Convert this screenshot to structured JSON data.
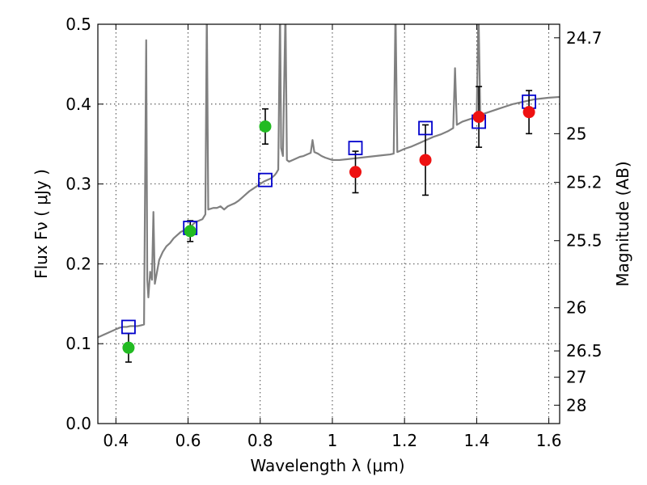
{
  "chart_data": {
    "type": "scatter",
    "title": "",
    "xlabel": "Wavelength  λ (μm)",
    "ylabel": "Flux  Fν  ( μJy )",
    "ylabel_right": "Magnitude (AB)",
    "xlim": [
      0.35,
      1.63
    ],
    "ylim": [
      0.0,
      0.5
    ],
    "x_ticks": [
      0.4,
      0.6,
      0.8,
      1.0,
      1.2,
      1.4,
      1.6
    ],
    "x_tick_labels": [
      "0.4",
      "0.6",
      "0.8",
      "1",
      "1.2",
      "1.4",
      "1.6"
    ],
    "y_ticks": [
      0.0,
      0.1,
      0.2,
      0.3,
      0.4,
      0.5
    ],
    "y_tick_labels": [
      "0.0",
      "0.1",
      "0.2",
      "0.3",
      "0.4",
      "0.5"
    ],
    "right_ticks": [
      {
        "label": "24.7",
        "flux": 0.483
      },
      {
        "label": "25",
        "flux": 0.363
      },
      {
        "label": "25.2",
        "flux": 0.302
      },
      {
        "label": "25.5",
        "flux": 0.229
      },
      {
        "label": "26",
        "flux": 0.145
      },
      {
        "label": "26.5",
        "flux": 0.091
      },
      {
        "label": "27",
        "flux": 0.058
      },
      {
        "label": "28",
        "flux": 0.023
      }
    ],
    "grid": true,
    "colors": {
      "spectrum": "#808080",
      "green_points": "#22bb22",
      "red_points": "#ee1111",
      "model_boxes": "#0000cc",
      "error_bars": "#000000"
    },
    "series": [
      {
        "style": "line",
        "points": [
          [
            0.35,
            0.108
          ],
          [
            0.36,
            0.11
          ],
          [
            0.37,
            0.112
          ],
          [
            0.38,
            0.114
          ],
          [
            0.39,
            0.116
          ],
          [
            0.4,
            0.118
          ],
          [
            0.41,
            0.12
          ],
          [
            0.42,
            0.121
          ],
          [
            0.43,
            0.121
          ],
          [
            0.44,
            0.122
          ],
          [
            0.45,
            0.122
          ],
          [
            0.46,
            0.122
          ],
          [
            0.47,
            0.123
          ],
          [
            0.478,
            0.124
          ],
          [
            0.484,
            0.48
          ],
          [
            0.487,
            0.18
          ],
          [
            0.49,
            0.158
          ],
          [
            0.495,
            0.19
          ],
          [
            0.5,
            0.18
          ],
          [
            0.504,
            0.265
          ],
          [
            0.508,
            0.175
          ],
          [
            0.52,
            0.205
          ],
          [
            0.53,
            0.215
          ],
          [
            0.54,
            0.222
          ],
          [
            0.55,
            0.226
          ],
          [
            0.56,
            0.232
          ],
          [
            0.57,
            0.236
          ],
          [
            0.58,
            0.24
          ],
          [
            0.59,
            0.242
          ],
          [
            0.6,
            0.245
          ],
          [
            0.61,
            0.248
          ],
          [
            0.62,
            0.252
          ],
          [
            0.63,
            0.254
          ],
          [
            0.64,
            0.256
          ],
          [
            0.648,
            0.262
          ],
          [
            0.652,
            0.52
          ],
          [
            0.656,
            0.268
          ],
          [
            0.67,
            0.27
          ],
          [
            0.68,
            0.27
          ],
          [
            0.69,
            0.272
          ],
          [
            0.7,
            0.268
          ],
          [
            0.71,
            0.272
          ],
          [
            0.72,
            0.274
          ],
          [
            0.73,
            0.276
          ],
          [
            0.74,
            0.279
          ],
          [
            0.75,
            0.283
          ],
          [
            0.76,
            0.287
          ],
          [
            0.77,
            0.291
          ],
          [
            0.78,
            0.294
          ],
          [
            0.79,
            0.297
          ],
          [
            0.8,
            0.3
          ],
          [
            0.81,
            0.303
          ],
          [
            0.82,
            0.305
          ],
          [
            0.83,
            0.307
          ],
          [
            0.84,
            0.311
          ],
          [
            0.845,
            0.314
          ],
          [
            0.85,
            0.318
          ],
          [
            0.855,
            0.52
          ],
          [
            0.858,
            0.345
          ],
          [
            0.863,
            0.335
          ],
          [
            0.87,
            0.52
          ],
          [
            0.874,
            0.33
          ],
          [
            0.88,
            0.328
          ],
          [
            0.89,
            0.33
          ],
          [
            0.9,
            0.332
          ],
          [
            0.91,
            0.334
          ],
          [
            0.92,
            0.335
          ],
          [
            0.93,
            0.337
          ],
          [
            0.94,
            0.339
          ],
          [
            0.945,
            0.355
          ],
          [
            0.95,
            0.34
          ],
          [
            0.96,
            0.338
          ],
          [
            0.97,
            0.335
          ],
          [
            0.98,
            0.333
          ],
          [
            1.0,
            0.33
          ],
          [
            1.02,
            0.33
          ],
          [
            1.04,
            0.331
          ],
          [
            1.06,
            0.332
          ],
          [
            1.08,
            0.333
          ],
          [
            1.1,
            0.334
          ],
          [
            1.12,
            0.335
          ],
          [
            1.14,
            0.336
          ],
          [
            1.16,
            0.337
          ],
          [
            1.17,
            0.338
          ],
          [
            1.175,
            0.52
          ],
          [
            1.18,
            0.34
          ],
          [
            1.19,
            0.342
          ],
          [
            1.2,
            0.344
          ],
          [
            1.22,
            0.347
          ],
          [
            1.24,
            0.351
          ],
          [
            1.26,
            0.355
          ],
          [
            1.28,
            0.359
          ],
          [
            1.3,
            0.362
          ],
          [
            1.32,
            0.366
          ],
          [
            1.335,
            0.37
          ],
          [
            1.34,
            0.445
          ],
          [
            1.345,
            0.374
          ],
          [
            1.36,
            0.378
          ],
          [
            1.38,
            0.381
          ],
          [
            1.4,
            0.384
          ],
          [
            1.405,
            0.52
          ],
          [
            1.41,
            0.386
          ],
          [
            1.42,
            0.388
          ],
          [
            1.44,
            0.391
          ],
          [
            1.46,
            0.394
          ],
          [
            1.48,
            0.397
          ],
          [
            1.5,
            0.4
          ],
          [
            1.52,
            0.402
          ],
          [
            1.54,
            0.404
          ],
          [
            1.56,
            0.406
          ],
          [
            1.58,
            0.407
          ],
          [
            1.6,
            0.408
          ],
          [
            1.63,
            0.409
          ]
        ]
      },
      {
        "style": "points-green",
        "points": [
          {
            "x": 0.435,
            "y": 0.095,
            "err": 0.018
          },
          {
            "x": 0.606,
            "y": 0.241,
            "err": 0.013
          },
          {
            "x": 0.814,
            "y": 0.372,
            "err": 0.022
          }
        ]
      },
      {
        "style": "points-red",
        "points": [
          {
            "x": 1.064,
            "y": 0.315,
            "err": 0.026
          },
          {
            "x": 1.258,
            "y": 0.33,
            "err": 0.044
          },
          {
            "x": 1.406,
            "y": 0.384,
            "err": 0.038
          },
          {
            "x": 1.545,
            "y": 0.39,
            "err": 0.027
          }
        ]
      },
      {
        "style": "boxes-blue",
        "points": [
          {
            "x": 0.435,
            "y": 0.121
          },
          {
            "x": 0.606,
            "y": 0.245
          },
          {
            "x": 0.814,
            "y": 0.305
          },
          {
            "x": 1.064,
            "y": 0.345
          },
          {
            "x": 1.258,
            "y": 0.37
          },
          {
            "x": 1.406,
            "y": 0.378
          },
          {
            "x": 1.545,
            "y": 0.403
          }
        ]
      }
    ]
  }
}
